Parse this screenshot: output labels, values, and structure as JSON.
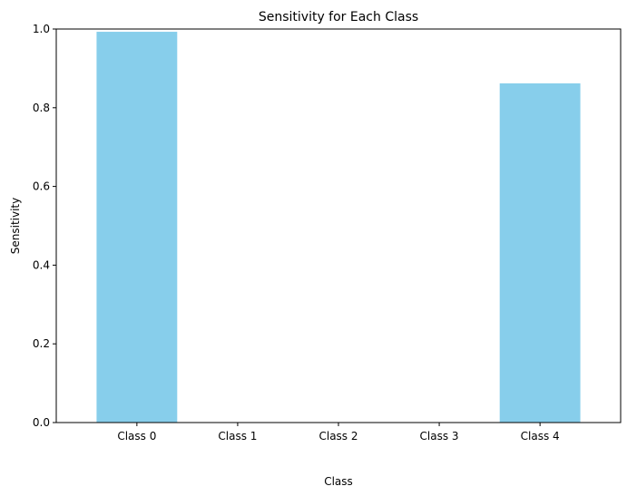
{
  "chart_data": {
    "type": "bar",
    "title": "Sensitivity for Each Class",
    "xlabel": "Class",
    "ylabel": "Sensitivity",
    "categories": [
      "Class 0",
      "Class 1",
      "Class 2",
      "Class 3",
      "Class 4"
    ],
    "values": [
      0.993,
      0.0,
      0.0,
      0.0,
      0.862
    ],
    "ylim": [
      0,
      1.0
    ],
    "yticks": [
      "0.0",
      "0.2",
      "0.4",
      "0.6",
      "0.8",
      "1.0"
    ],
    "ytick_values": [
      0,
      0.2,
      0.4,
      0.6,
      0.8,
      1.0
    ],
    "bar_color": "#87ceeb",
    "grid": false,
    "legend": "none"
  }
}
